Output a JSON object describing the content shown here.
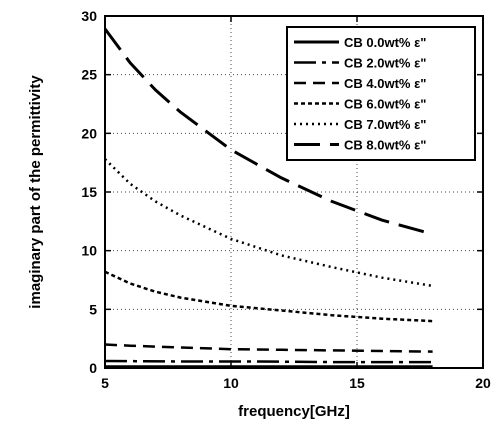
{
  "chart_data": {
    "type": "line",
    "xlabel": "frequency[GHz]",
    "ylabel": "imaginary part of the permittivity",
    "xlim": [
      5,
      20
    ],
    "ylim": [
      0,
      30
    ],
    "xticks": [
      "5",
      "10",
      "15",
      "20"
    ],
    "yticks": [
      "0",
      "5",
      "10",
      "15",
      "20",
      "25",
      "30"
    ],
    "grid": "dotted",
    "legend_position": "top-right",
    "series": [
      {
        "name": "CB 0.0wt% ε\"",
        "dash": "solid",
        "x": [
          5,
          8,
          11,
          14,
          18
        ],
        "y": [
          0.1,
          0.1,
          0.1,
          0.1,
          0.1
        ]
      },
      {
        "name": "CB 2.0wt% ε\"",
        "dash": "longdash-dot",
        "x": [
          5,
          8,
          11,
          14,
          18
        ],
        "y": [
          0.6,
          0.55,
          0.55,
          0.5,
          0.5
        ]
      },
      {
        "name": "CB 4.0wt% ε\"",
        "dash": "dash",
        "x": [
          5,
          6,
          8,
          10,
          12,
          14,
          16,
          18
        ],
        "y": [
          2.0,
          1.9,
          1.75,
          1.6,
          1.55,
          1.5,
          1.45,
          1.4
        ]
      },
      {
        "name": "CB 6.0wt% ε\"",
        "dash": "short-dash",
        "x": [
          5,
          6,
          7,
          8,
          10,
          12,
          14,
          16,
          18
        ],
        "y": [
          8.2,
          7.2,
          6.5,
          6.0,
          5.3,
          4.9,
          4.5,
          4.2,
          4.0
        ]
      },
      {
        "name": "CB 7.0wt% ε\"",
        "dash": "dot",
        "x": [
          5,
          6,
          7,
          8,
          10,
          12,
          14,
          16,
          18
        ],
        "y": [
          17.8,
          15.7,
          14.2,
          13.0,
          11.0,
          9.6,
          8.6,
          7.7,
          7.0
        ]
      },
      {
        "name": "CB 8.0wt% ε\"",
        "dash": "longdash",
        "x": [
          5,
          6,
          7,
          8,
          10,
          12,
          14,
          16,
          18
        ],
        "y": [
          28.9,
          26.0,
          23.7,
          21.8,
          18.6,
          16.2,
          14.2,
          12.6,
          11.4
        ]
      }
    ]
  }
}
